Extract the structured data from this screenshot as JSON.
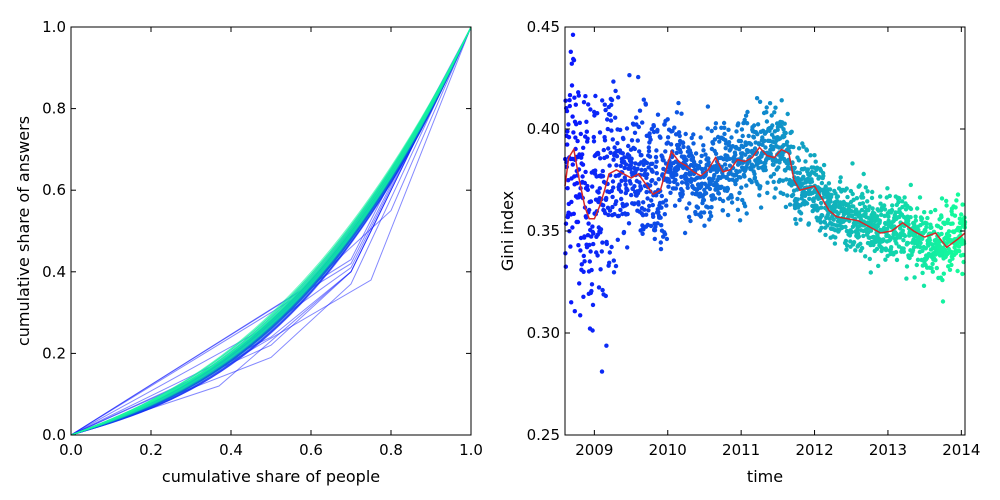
{
  "chart_data": [
    {
      "type": "line",
      "xlabel": "cumulative share of people",
      "ylabel": "cumulative share of answers",
      "xlim": [
        0.0,
        1.0
      ],
      "ylim": [
        0.0,
        1.0
      ],
      "xticks": [
        "0.0",
        "0.2",
        "0.4",
        "0.6",
        "0.8",
        "1.0"
      ],
      "yticks": [
        "0.0",
        "0.2",
        "0.4",
        "0.6",
        "0.8",
        "1.0"
      ],
      "grid": false,
      "colors": {
        "early": "#0a14ff",
        "late": "#14ff9a"
      },
      "series_count": 68,
      "series": [
        {
          "x": [
            0,
            0.37,
            0.7,
            1
          ],
          "y": [
            0,
            0.12,
            0.4,
            1
          ]
        },
        {
          "x": [
            0,
            0.5,
            0.7,
            1
          ],
          "y": [
            0,
            0.19,
            0.37,
            1
          ]
        },
        {
          "x": [
            0,
            0.7,
            0.88,
            1
          ],
          "y": [
            0,
            0.43,
            0.78,
            1
          ]
        },
        {
          "x": [
            0,
            0.6,
            0.8,
            1
          ],
          "y": [
            0,
            0.37,
            0.55,
            1
          ]
        },
        {
          "x": [
            0,
            0.4,
            0.75,
            1
          ],
          "y": [
            0,
            0.18,
            0.38,
            1
          ]
        },
        {
          "x": [
            0,
            0.5,
            0.7,
            1
          ],
          "y": [
            0,
            0.22,
            0.4,
            1
          ]
        },
        {
          "x": [
            0,
            0.5,
            0.7,
            1
          ],
          "y": [
            0,
            0.24,
            0.4,
            1
          ]
        },
        {
          "x": [
            0,
            0.5,
            0.7,
            1
          ],
          "y": [
            0,
            0.27,
            0.41,
            1
          ]
        },
        {
          "x": [
            0,
            0.5,
            0.7,
            1
          ],
          "y": [
            0,
            0.3,
            0.42,
            1
          ]
        }
      ]
    },
    {
      "type": "scatter",
      "xlabel": "time",
      "ylabel": "Gini index",
      "xlim": [
        2008.6,
        2014.05
      ],
      "ylim": [
        0.25,
        0.45
      ],
      "xticks": [
        "2009",
        "2010",
        "2011",
        "2012",
        "2013",
        "2014"
      ],
      "yticks": [
        "0.25",
        "0.30",
        "0.35",
        "0.40",
        "0.45"
      ],
      "grid": false,
      "point_count": 2000,
      "colors": {
        "early": "#0a14ff",
        "late": "#14ff9a",
        "moving_average": "#d62728"
      },
      "trend": {
        "x": [
          2008.6,
          2008.75,
          2008.9,
          2009.1,
          2009.25,
          2009.5,
          2009.7,
          2009.9,
          2010.05,
          2010.3,
          2010.5,
          2010.7,
          2010.9,
          2011.1,
          2011.3,
          2011.6,
          2011.75,
          2011.95,
          2012.1,
          2012.4,
          2012.7,
          2012.9,
          2013.2,
          2013.5,
          2013.7,
          2014.05
        ],
        "y": [
          0.38,
          0.39,
          0.36,
          0.36,
          0.378,
          0.377,
          0.375,
          0.368,
          0.388,
          0.38,
          0.375,
          0.382,
          0.382,
          0.386,
          0.388,
          0.388,
          0.372,
          0.372,
          0.365,
          0.358,
          0.356,
          0.35,
          0.352,
          0.345,
          0.342,
          0.349
        ]
      },
      "moving_average": {
        "x": [
          2008.6,
          2008.65,
          2008.72,
          2008.8,
          2008.87,
          2008.93,
          2009.0,
          2009.07,
          2009.14,
          2009.2,
          2009.3,
          2009.4,
          2009.5,
          2009.6,
          2009.7,
          2009.8,
          2009.9,
          2010.0,
          2010.05,
          2010.15,
          2010.25,
          2010.35,
          2010.45,
          2010.55,
          2010.65,
          2010.75,
          2010.85,
          2010.95,
          2011.05,
          2011.15,
          2011.25,
          2011.35,
          2011.45,
          2011.55,
          2011.65,
          2011.72,
          2011.8,
          2011.9,
          2012.0,
          2012.1,
          2012.2,
          2012.3,
          2012.45,
          2012.6,
          2012.75,
          2012.9,
          2013.05,
          2013.2,
          2013.35,
          2013.5,
          2013.65,
          2013.8,
          2013.95,
          2014.05
        ],
        "y": [
          0.372,
          0.386,
          0.39,
          0.374,
          0.362,
          0.356,
          0.356,
          0.362,
          0.37,
          0.378,
          0.38,
          0.378,
          0.376,
          0.378,
          0.373,
          0.368,
          0.37,
          0.383,
          0.389,
          0.384,
          0.382,
          0.379,
          0.377,
          0.38,
          0.386,
          0.379,
          0.38,
          0.385,
          0.384,
          0.386,
          0.391,
          0.387,
          0.386,
          0.39,
          0.388,
          0.375,
          0.37,
          0.371,
          0.372,
          0.366,
          0.36,
          0.357,
          0.356,
          0.355,
          0.352,
          0.349,
          0.35,
          0.354,
          0.35,
          0.347,
          0.349,
          0.342,
          0.346,
          0.349
        ]
      }
    }
  ]
}
